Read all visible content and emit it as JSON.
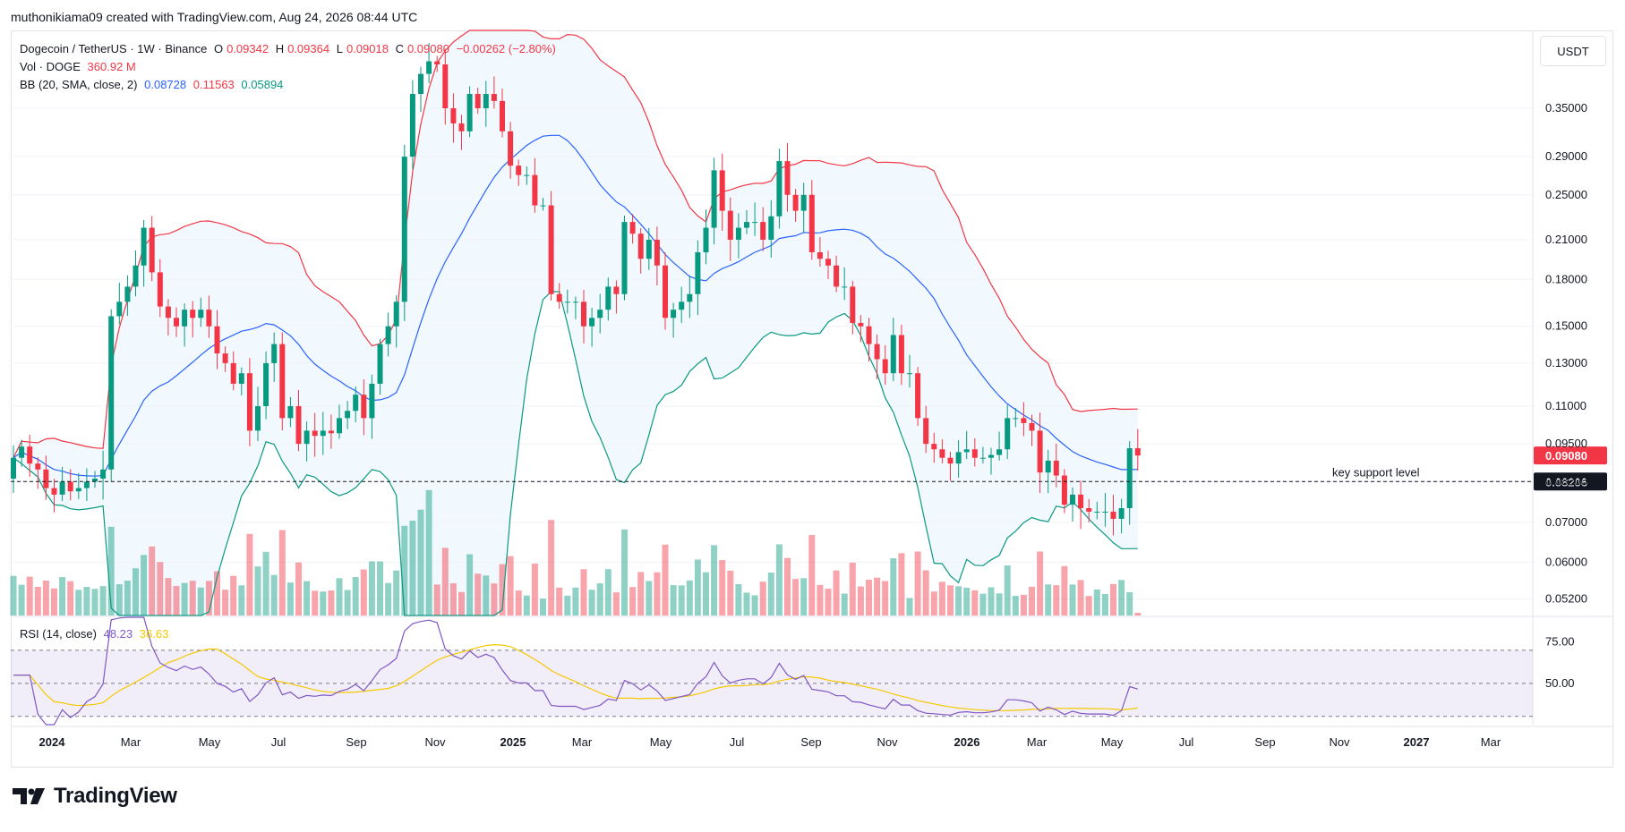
{
  "header": {
    "text": "muthonikiama09 created with TradingView.com, Aug 24, 2026 08:44 UTC"
  },
  "legend": {
    "symbol": "Dogecoin / TetherUS · 1W · Binance",
    "o_label": "O",
    "o_value": "0.09342",
    "h_label": "H",
    "h_value": "0.09364",
    "l_label": "L",
    "l_value": "0.09018",
    "c_label": "C",
    "c_value": "0.09080",
    "change": "−0.00262 (−2.80%)",
    "vol_label": "Vol · DOGE",
    "vol_value": "360.92 M",
    "bb_label": "BB (20, SMA, close, 2)",
    "bb_mid": "0.08728",
    "bb_upper": "0.11563",
    "bb_lower": "0.05894",
    "rsi_label": "RSI (14, close)",
    "rsi_value": "48.23",
    "rsi_ma": "36.63"
  },
  "currency_button": "USDT",
  "price_tag": {
    "current": "0.09080",
    "support": "0.08206"
  },
  "annotation": "key support level",
  "logo_text": "TradingView",
  "colors": {
    "up": "#089981",
    "down": "#f23645",
    "bb_mid": "#2962ff",
    "bb_upper": "#f23645",
    "bb_lower": "#089981",
    "rsi": "#7e57c2",
    "rsi_ma": "#f5c800"
  },
  "chart_data": [
    {
      "type": "candlestick",
      "scale": "log",
      "price_axis_ticks": [
        0.35,
        0.29,
        0.25,
        0.21,
        0.18,
        0.15,
        0.13,
        0.11,
        0.095,
        0.082,
        0.07,
        0.06,
        0.052
      ],
      "price_axis_labels": [
        "0.35000",
        "0.29000",
        "0.25000",
        "0.21000",
        "0.18000",
        "0.15000",
        "0.13000",
        "0.11000",
        "0.09500",
        "0.08200",
        "0.07000",
        "0.06000",
        "0.05200"
      ],
      "x_axis_labels": [
        {
          "label": "2024",
          "year": true
        },
        {
          "label": "Mar"
        },
        {
          "label": "May"
        },
        {
          "label": "Jul"
        },
        {
          "label": "Sep"
        },
        {
          "label": "Nov"
        },
        {
          "label": "2025",
          "year": true
        },
        {
          "label": "Mar"
        },
        {
          "label": "May"
        },
        {
          "label": "Jul"
        },
        {
          "label": "Sep"
        },
        {
          "label": "Nov"
        },
        {
          "label": "2026",
          "year": true
        },
        {
          "label": "Mar"
        },
        {
          "label": "May"
        },
        {
          "label": "Jul"
        },
        {
          "label": "Sep"
        },
        {
          "label": "Nov"
        },
        {
          "label": "2027",
          "year": true
        },
        {
          "label": "Mar"
        }
      ],
      "closes": [
        0.09,
        0.094,
        0.088,
        0.086,
        0.08,
        0.078,
        0.082,
        0.079,
        0.08,
        0.082,
        0.083,
        0.086,
        0.156,
        0.165,
        0.175,
        0.19,
        0.22,
        0.185,
        0.162,
        0.155,
        0.15,
        0.16,
        0.155,
        0.16,
        0.15,
        0.135,
        0.13,
        0.12,
        0.125,
        0.1,
        0.11,
        0.13,
        0.14,
        0.105,
        0.11,
        0.095,
        0.1,
        0.098,
        0.1,
        0.099,
        0.105,
        0.108,
        0.115,
        0.105,
        0.12,
        0.14,
        0.15,
        0.165,
        0.29,
        0.37,
        0.4,
        0.42,
        0.415,
        0.35,
        0.33,
        0.32,
        0.37,
        0.35,
        0.37,
        0.36,
        0.32,
        0.28,
        0.27,
        0.27,
        0.24,
        0.24,
        0.17,
        0.165,
        0.165,
        0.165,
        0.15,
        0.155,
        0.16,
        0.175,
        0.17,
        0.225,
        0.215,
        0.195,
        0.21,
        0.19,
        0.155,
        0.16,
        0.165,
        0.17,
        0.2,
        0.22,
        0.275,
        0.235,
        0.21,
        0.22,
        0.225,
        0.225,
        0.21,
        0.23,
        0.285,
        0.25,
        0.235,
        0.25,
        0.2,
        0.195,
        0.19,
        0.175,
        0.175,
        0.152,
        0.15,
        0.14,
        0.132,
        0.125,
        0.145,
        0.125,
        0.125,
        0.105,
        0.095,
        0.093,
        0.09,
        0.088,
        0.092,
        0.093,
        0.09,
        0.09,
        0.091,
        0.093,
        0.105,
        0.105,
        0.103,
        0.1,
        0.085,
        0.089,
        0.084,
        0.075,
        0.078,
        0.074,
        0.073,
        0.073,
        0.073,
        0.071,
        0.074,
        0.0934,
        0.0908
      ]
    },
    {
      "type": "line",
      "name": "RSI (14, close)",
      "ylim": [
        25,
        90
      ],
      "axis_ticks": [
        75,
        50
      ],
      "axis_labels": [
        "75.00",
        "50.00"
      ],
      "band": [
        70,
        30
      ]
    }
  ]
}
